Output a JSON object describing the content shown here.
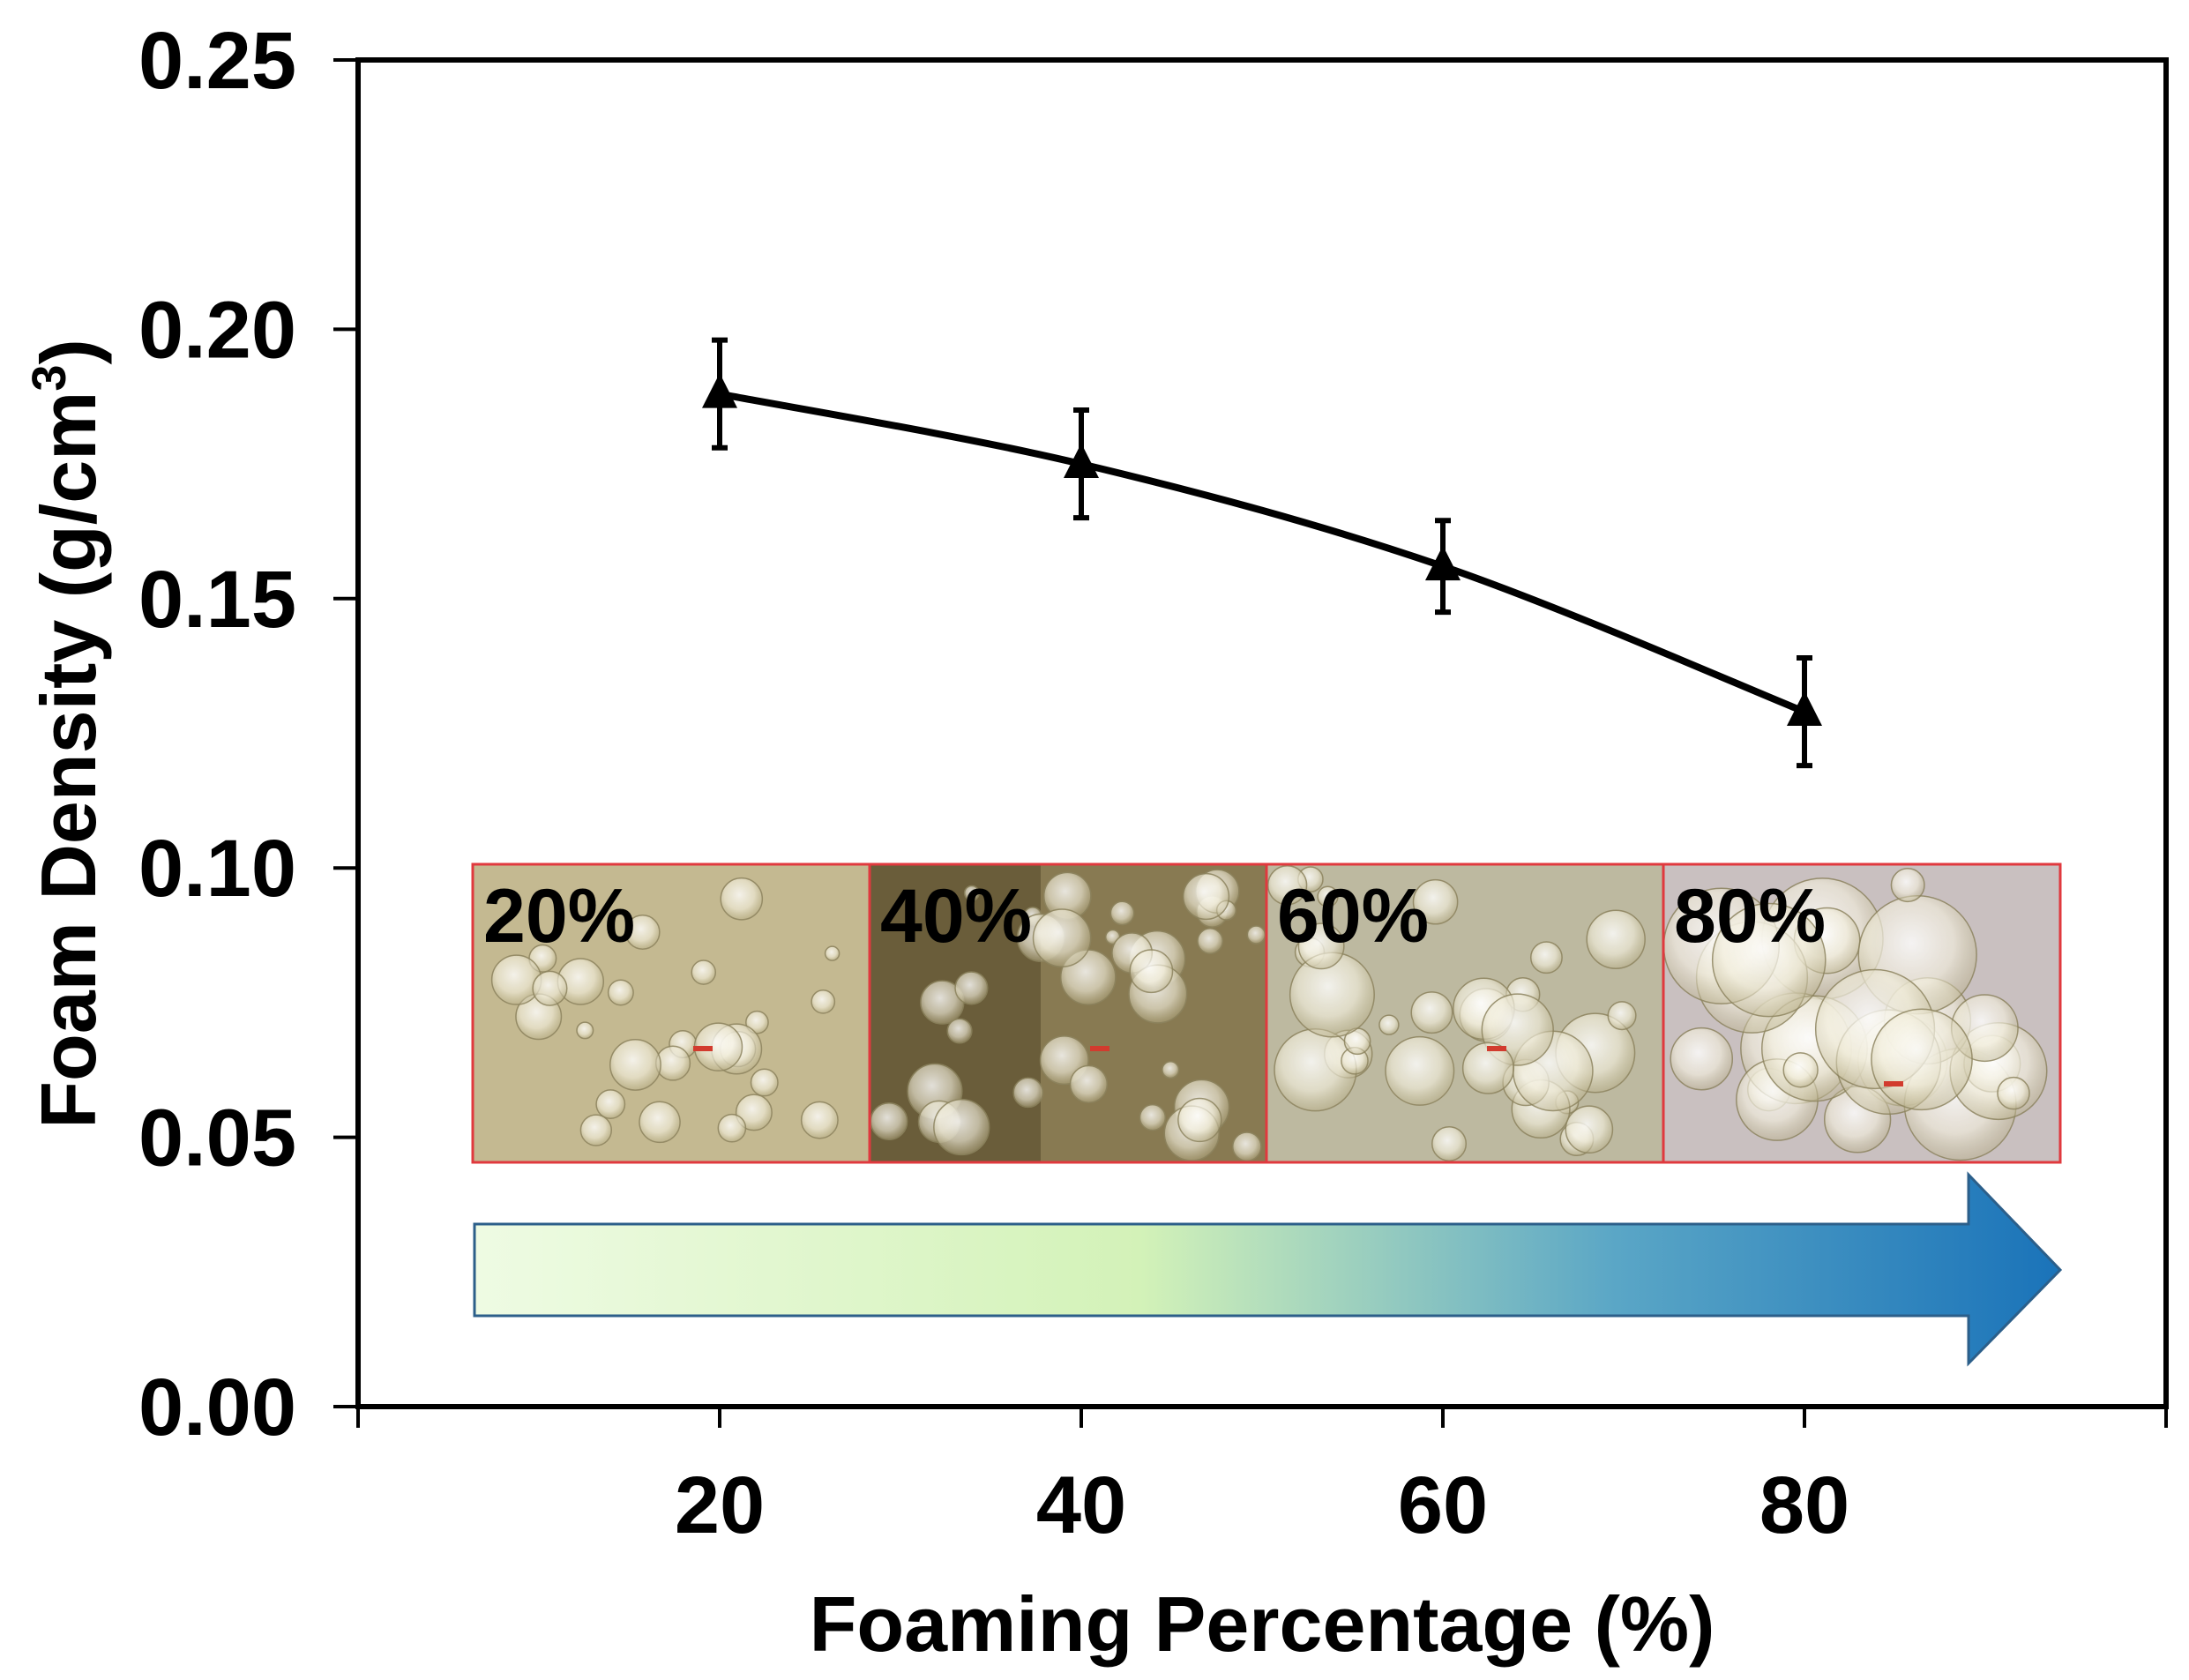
{
  "chart_data": {
    "type": "line",
    "title": "",
    "xlabel": "Foaming Percentage (%)",
    "ylabel": "Foam Density (g/cm",
    "ylabel_superscript": "3",
    "ylabel_close": ")",
    "xlim": [
      0,
      100
    ],
    "ylim": [
      0,
      0.25
    ],
    "x_ticks": [
      20,
      40,
      60,
      80
    ],
    "y_ticks": [
      0.0,
      0.05,
      0.1,
      0.15,
      0.2,
      0.25
    ],
    "y_tick_labels": [
      "0.00",
      "0.05",
      "0.10",
      "0.15",
      "0.20",
      "0.25"
    ],
    "grid": false,
    "series": [
      {
        "marker": "triangle",
        "color": "#000000",
        "x": [
          20,
          40,
          60,
          80
        ],
        "values": [
          0.188,
          0.175,
          0.156,
          0.129
        ],
        "error": [
          0.01,
          0.01,
          0.0085,
          0.01
        ]
      }
    ],
    "insets": {
      "labels": [
        "20%",
        "40%",
        "60%",
        "80%"
      ],
      "border_color": "#e0393e"
    },
    "arrow": {
      "direction": "right",
      "gradient": [
        "#eefbe3",
        "#d3f2b8",
        "#5aa6c6",
        "#1a73b9"
      ],
      "outline": "#2c5f8a"
    }
  }
}
